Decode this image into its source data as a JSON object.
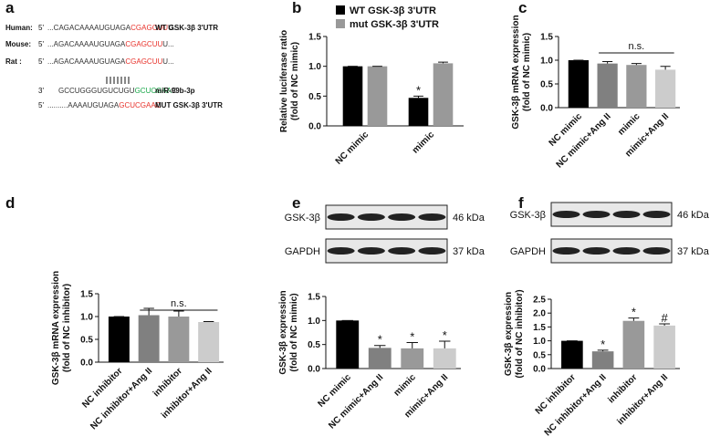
{
  "panels": [
    "a",
    "b",
    "c",
    "d",
    "e",
    "f"
  ],
  "sequence_panel": {
    "rows": [
      {
        "species": "Human:",
        "prefix": "5'",
        "segments": [
          {
            "text": "...CAGACAAAAUGUAGA",
            "color": "#333333"
          },
          {
            "text": "CGAGCUU",
            "color": "#e8322b"
          },
          {
            "text": "U...",
            "color": "#333333"
          }
        ],
        "note": "WT GSK-3β 3'UTR"
      },
      {
        "species": "Mouse:",
        "prefix": "5'",
        "segments": [
          {
            "text": "...AGACAAAAUGUAGA",
            "color": "#333333"
          },
          {
            "text": "CGAGCUU",
            "color": "#e8322b"
          },
          {
            "text": "U...",
            "color": "#333333"
          }
        ]
      },
      {
        "species": "Rat :",
        "prefix": "5'",
        "segments": [
          {
            "text": "...AGACAAAAUGUAGA",
            "color": "#333333"
          },
          {
            "text": "CGAGCUU",
            "color": "#e8322b"
          },
          {
            "text": "U...",
            "color": "#333333"
          }
        ]
      },
      {
        "prefix": "3'",
        "segments": [
          {
            "text": "GCCUGGGUGUCUGU",
            "color": "#333333"
          },
          {
            "text": "GCUCGAA",
            "color": "#1aa84a"
          },
          {
            "text": "C",
            "color": "#333333"
          }
        ],
        "note": "miR-99b-3p"
      },
      {
        "prefix": "5'",
        "segments": [
          {
            "text": "..........AAAAUGUAGA",
            "color": "#333333"
          },
          {
            "text": "GCUCGAAC",
            "color": "#e8322b"
          }
        ],
        "note": "MUT GSK-3β 3'UTR"
      }
    ]
  },
  "blots": [
    {
      "rows": [
        {
          "protein": "GSK-3β",
          "size": "46 kDa"
        },
        {
          "protein": "GAPDH",
          "size": "37 kDa"
        }
      ]
    },
    {
      "rows": [
        {
          "protein": "GSK-3β",
          "size": "46 kDa"
        },
        {
          "protein": "GAPDH",
          "size": "37 kDa"
        }
      ]
    }
  ],
  "chart_data": [
    {
      "type": "bar",
      "ylabel": [
        "Relative luciferase ratio",
        "(fold of NC mimic)"
      ],
      "categories": [
        "NC mimic",
        "mimic"
      ],
      "series": [
        {
          "name": "WT GSK-3β 3'UTR",
          "color": "#000000",
          "values": [
            1.0,
            0.47
          ],
          "errors": [
            0,
            0.03
          ],
          "marks": [
            null,
            "*"
          ]
        },
        {
          "name": "mut GSK-3β 3'UTR",
          "color": "#999999",
          "values": [
            1.0,
            1.05
          ],
          "errors": [
            0,
            0.02
          ]
        }
      ],
      "ylim": [
        0,
        1.5
      ],
      "yticks": [
        {
          "value": 0,
          "label": "0.0"
        },
        0.5,
        {
          "value": 1,
          "label": "1.0"
        },
        1.5
      ],
      "legend": "top-left"
    },
    {
      "type": "bar",
      "ylabel": [
        "GSK-3β mRNA expression",
        "(fold of NC mimic)"
      ],
      "categories": [
        "NC mimic",
        "NC mimic+Ang II",
        "mimic",
        "mimic+Ang II"
      ],
      "values": [
        1.0,
        0.93,
        0.9,
        0.8
      ],
      "errors": [
        0,
        0.04,
        0.03,
        0.07
      ],
      "colors": [
        "#000000",
        "#808080",
        "#999999",
        "#cccccc"
      ],
      "ylim": [
        0,
        1.5
      ],
      "yticks": [
        {
          "value": 0,
          "label": "0.0"
        },
        0.5,
        {
          "value": 1,
          "label": "1.0"
        },
        1.5
      ],
      "bracket": {
        "text": "n.s.",
        "from": 1,
        "to": 3
      }
    },
    {
      "type": "bar",
      "ylabel": [
        "GSK-3β mRNA expression",
        "(fold of NC inhibitor)"
      ],
      "categories": [
        "NC inhibitor",
        "NC inhibitor+Ang II",
        "inhibitor",
        "inhibitor+Ang II"
      ],
      "values": [
        1.0,
        1.03,
        1.0,
        0.88
      ],
      "errors": [
        0,
        0.15,
        0.12,
        0.01
      ],
      "colors": [
        "#000000",
        "#808080",
        "#999999",
        "#cccccc"
      ],
      "ylim": [
        0,
        1.5
      ],
      "yticks": [
        {
          "value": 0,
          "label": "0.0"
        },
        0.5,
        {
          "value": 1,
          "label": "1.0"
        },
        1.5
      ],
      "bracket": {
        "text": "n.s.",
        "from": 1,
        "to": 3
      }
    },
    {
      "type": "bar",
      "ylabel": [
        "GSK-3β expression",
        "(fold of NC mimic)"
      ],
      "categories": [
        "NC mimic",
        "NC mimic+Ang II",
        "mimic",
        "mimic+Ang II"
      ],
      "values": [
        1.0,
        0.43,
        0.42,
        0.42
      ],
      "errors": [
        0,
        0.05,
        0.12,
        0.15
      ],
      "colors": [
        "#000000",
        "#808080",
        "#999999",
        "#cccccc"
      ],
      "marks": [
        null,
        "*",
        "*",
        "*"
      ],
      "ylim": [
        0,
        1.5
      ],
      "yticks": [
        {
          "value": 0,
          "label": "0.0"
        },
        0.5,
        {
          "value": 1,
          "label": "1.0"
        },
        1.5
      ]
    },
    {
      "type": "bar",
      "ylabel": [
        "GSK-3β expression",
        "(fold of NC inhibitor)"
      ],
      "categories": [
        "NC inhibitor",
        "NC inhibitor+Ang II",
        "inhibitor",
        "inhibitor+Ang II"
      ],
      "values": [
        1.0,
        0.62,
        1.72,
        1.55
      ],
      "errors": [
        0,
        0.04,
        0.1,
        0.06
      ],
      "colors": [
        "#000000",
        "#808080",
        "#999999",
        "#cccccc"
      ],
      "marks": [
        null,
        "*",
        "*",
        "#"
      ],
      "ylim": [
        0,
        2.5
      ],
      "yticks": [
        {
          "value": 0,
          "label": "0.0"
        },
        0.5,
        {
          "value": 1,
          "label": "1.0"
        },
        1.5,
        {
          "value": 2,
          "label": "2.0"
        },
        2.5
      ]
    }
  ]
}
